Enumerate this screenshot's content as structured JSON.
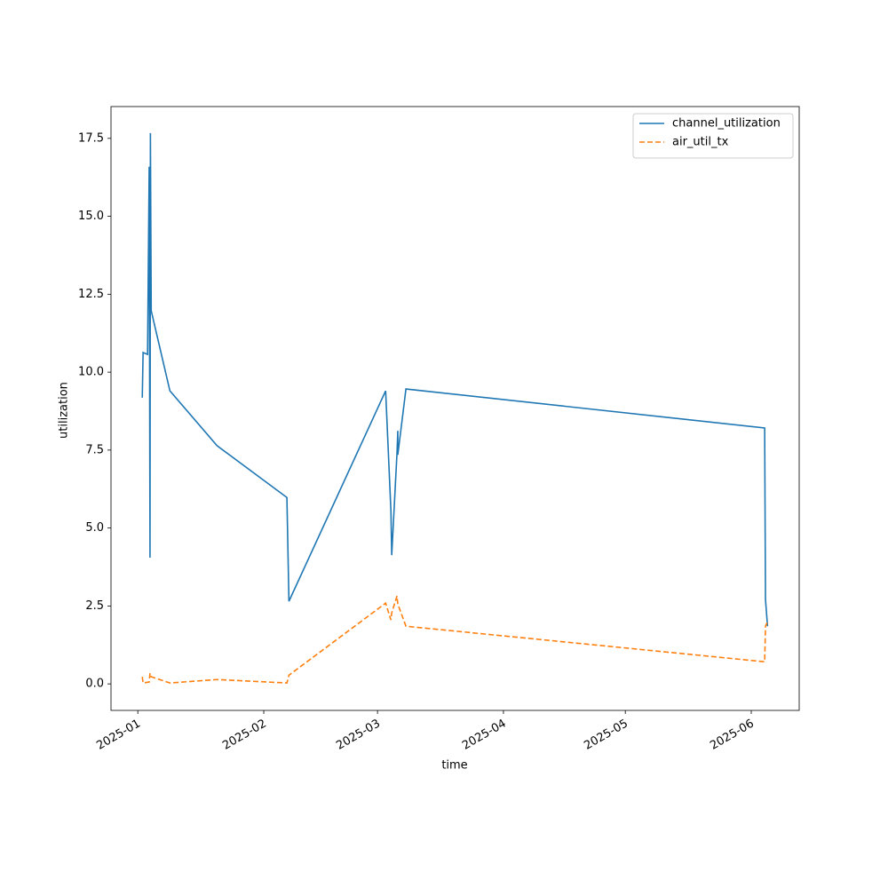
{
  "chart_data": {
    "type": "line",
    "xlabel": "time",
    "ylabel": "utilization",
    "xlim": [
      -6.6,
      162.8
    ],
    "ylim": [
      -0.85,
      18.52
    ],
    "xticks": [
      {
        "value": 0,
        "label": "2025-01"
      },
      {
        "value": 31,
        "label": "2025-02"
      },
      {
        "value": 59,
        "label": "2025-03"
      },
      {
        "value": 90,
        "label": "2025-04"
      },
      {
        "value": 120,
        "label": "2025-05"
      },
      {
        "value": 151,
        "label": "2025-06"
      }
    ],
    "yticks": [
      {
        "value": 0,
        "label": "0.0"
      },
      2.5,
      {
        "value": 5,
        "label": "5.0"
      },
      7.5,
      {
        "value": 10,
        "label": "10.0"
      },
      12.5,
      {
        "value": 15,
        "label": "15.0"
      },
      17.5
    ],
    "legend": "upper right",
    "series": [
      {
        "name": "channel_utilization",
        "color": "#1f77b4",
        "linestyle": "solid",
        "x": [
          1.1,
          1.3,
          2.4,
          2.8,
          3.0,
          3.1,
          3.3,
          7.9,
          19.5,
          36.7,
          37.2,
          61.0,
          62.3,
          62.5,
          63.8,
          64.0,
          64.0,
          66.0,
          154.3,
          154.5,
          155.0
        ],
        "values": [
          9.18,
          10.63,
          10.57,
          16.59,
          4.05,
          17.67,
          11.97,
          9.4,
          7.64,
          5.98,
          2.65,
          9.4,
          5.56,
          4.13,
          7.41,
          8.12,
          7.35,
          9.46,
          8.21,
          2.71,
          1.85
        ]
      },
      {
        "name": "air_util_tx",
        "color": "#ff7f0e",
        "linestyle": "dashed",
        "x": [
          1.1,
          1.3,
          2.8,
          3.0,
          3.3,
          7.9,
          19.5,
          36.7,
          37.2,
          61.0,
          62.3,
          62.5,
          63.8,
          64.0,
          66.0,
          154.3,
          154.5,
          155.0
        ],
        "values": [
          0.23,
          0.03,
          0.06,
          0.34,
          0.23,
          0.03,
          0.14,
          0.03,
          0.28,
          2.59,
          2.05,
          2.28,
          2.82,
          2.56,
          1.85,
          0.71,
          1.85,
          2.0
        ]
      }
    ]
  }
}
